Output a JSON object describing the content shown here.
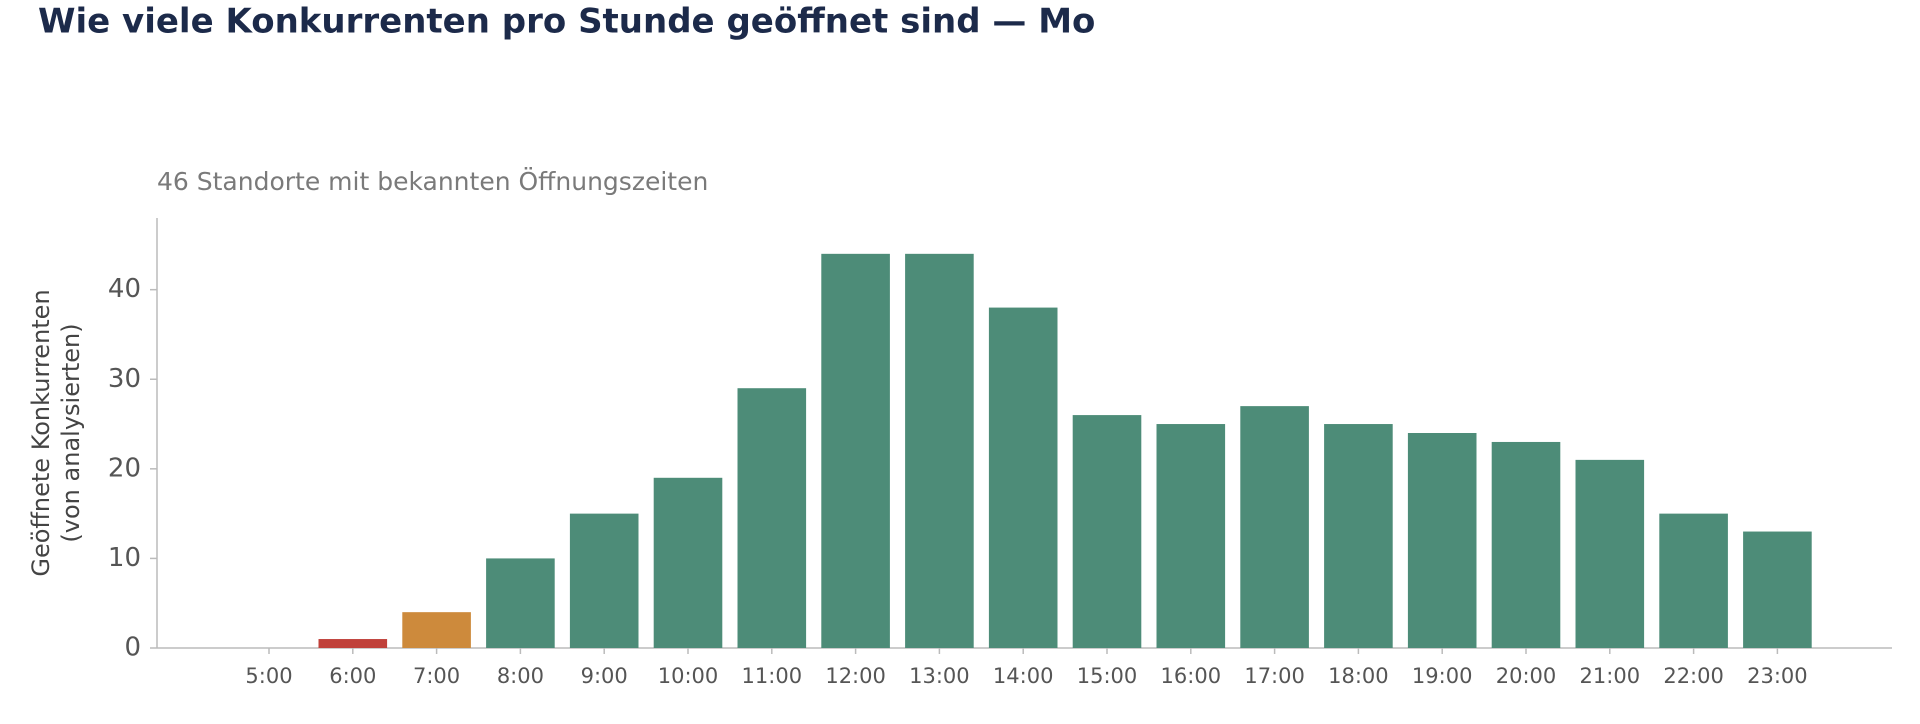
{
  "chart_data": {
    "type": "bar",
    "title": "Wie viele Konkurrenten pro Stunde geöffnet sind — Mo",
    "subtitle": "46 Standorte mit bekannten Öffnungszeiten",
    "ylabel": [
      "Geöffnete Konkurrenten",
      "(von analysierten)"
    ],
    "categories": [
      "5:00",
      "6:00",
      "7:00",
      "8:00",
      "9:00",
      "10:00",
      "11:00",
      "12:00",
      "13:00",
      "14:00",
      "15:00",
      "16:00",
      "17:00",
      "18:00",
      "19:00",
      "20:00",
      "21:00",
      "22:00",
      "23:00"
    ],
    "values": [
      0,
      1,
      4,
      10,
      15,
      19,
      29,
      44,
      44,
      38,
      26,
      25,
      27,
      25,
      24,
      23,
      21,
      15,
      13
    ],
    "colors": [
      "#4d8c78",
      "#c0413a",
      "#cd8a3c",
      "#4d8c78",
      "#4d8c78",
      "#4d8c78",
      "#4d8c78",
      "#4d8c78",
      "#4d8c78",
      "#4d8c78",
      "#4d8c78",
      "#4d8c78",
      "#4d8c78",
      "#4d8c78",
      "#4d8c78",
      "#4d8c78",
      "#4d8c78",
      "#4d8c78",
      "#4d8c78"
    ],
    "ylim": [
      0,
      48
    ],
    "yticks": [
      0,
      10,
      20,
      30,
      40
    ],
    "grid": false
  }
}
